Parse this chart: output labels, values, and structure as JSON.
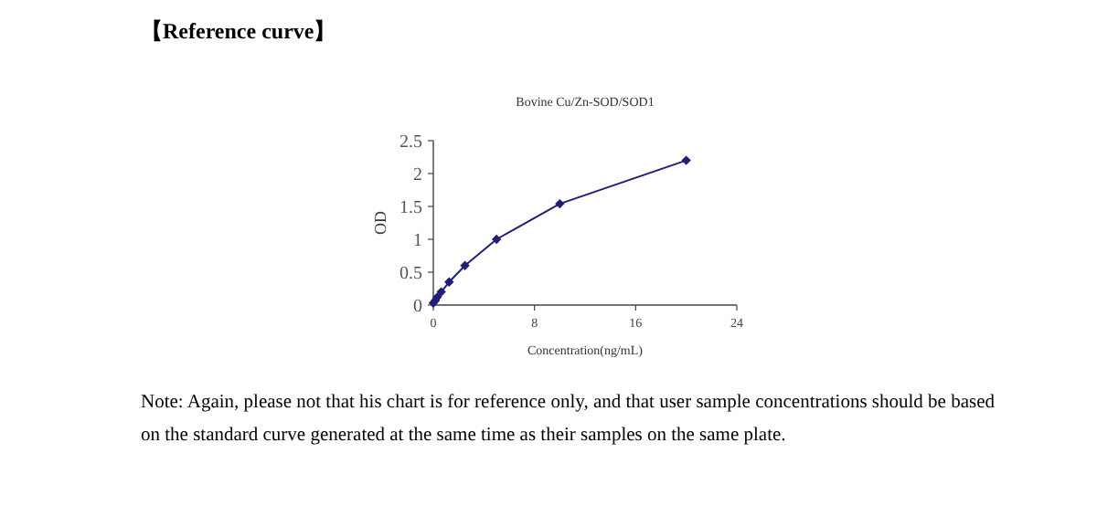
{
  "chart_data": {
    "type": "line",
    "title": "Bovine Cu/Zn-SOD/SOD1",
    "subtitle": "【Reference curve】",
    "xlabel": "Concentration(ng/mL)",
    "ylabel": "OD",
    "x": [
      0,
      0.156,
      0.3125,
      0.625,
      1.25,
      2.5,
      5,
      10,
      20
    ],
    "series": [
      {
        "color": "#1f1f7a",
        "values": [
          0.03,
          0.07,
          0.12,
          0.2,
          0.35,
          0.6,
          1.0,
          1.54,
          2.2
        ]
      }
    ],
    "xlim": [
      0,
      24
    ],
    "xticks": [
      0,
      8,
      16,
      24
    ],
    "ylim": [
      0,
      2.5
    ],
    "yticks": [
      0,
      0.5,
      1,
      1.5,
      2,
      2.5
    ],
    "marker": "diamond",
    "line_style": "solid",
    "grid": false,
    "annotations": [
      "Note: Again, please not that his chart is for reference only, and that user sample concentrations should be based on the standard curve generated at the same time as their samples on the same plate."
    ]
  }
}
